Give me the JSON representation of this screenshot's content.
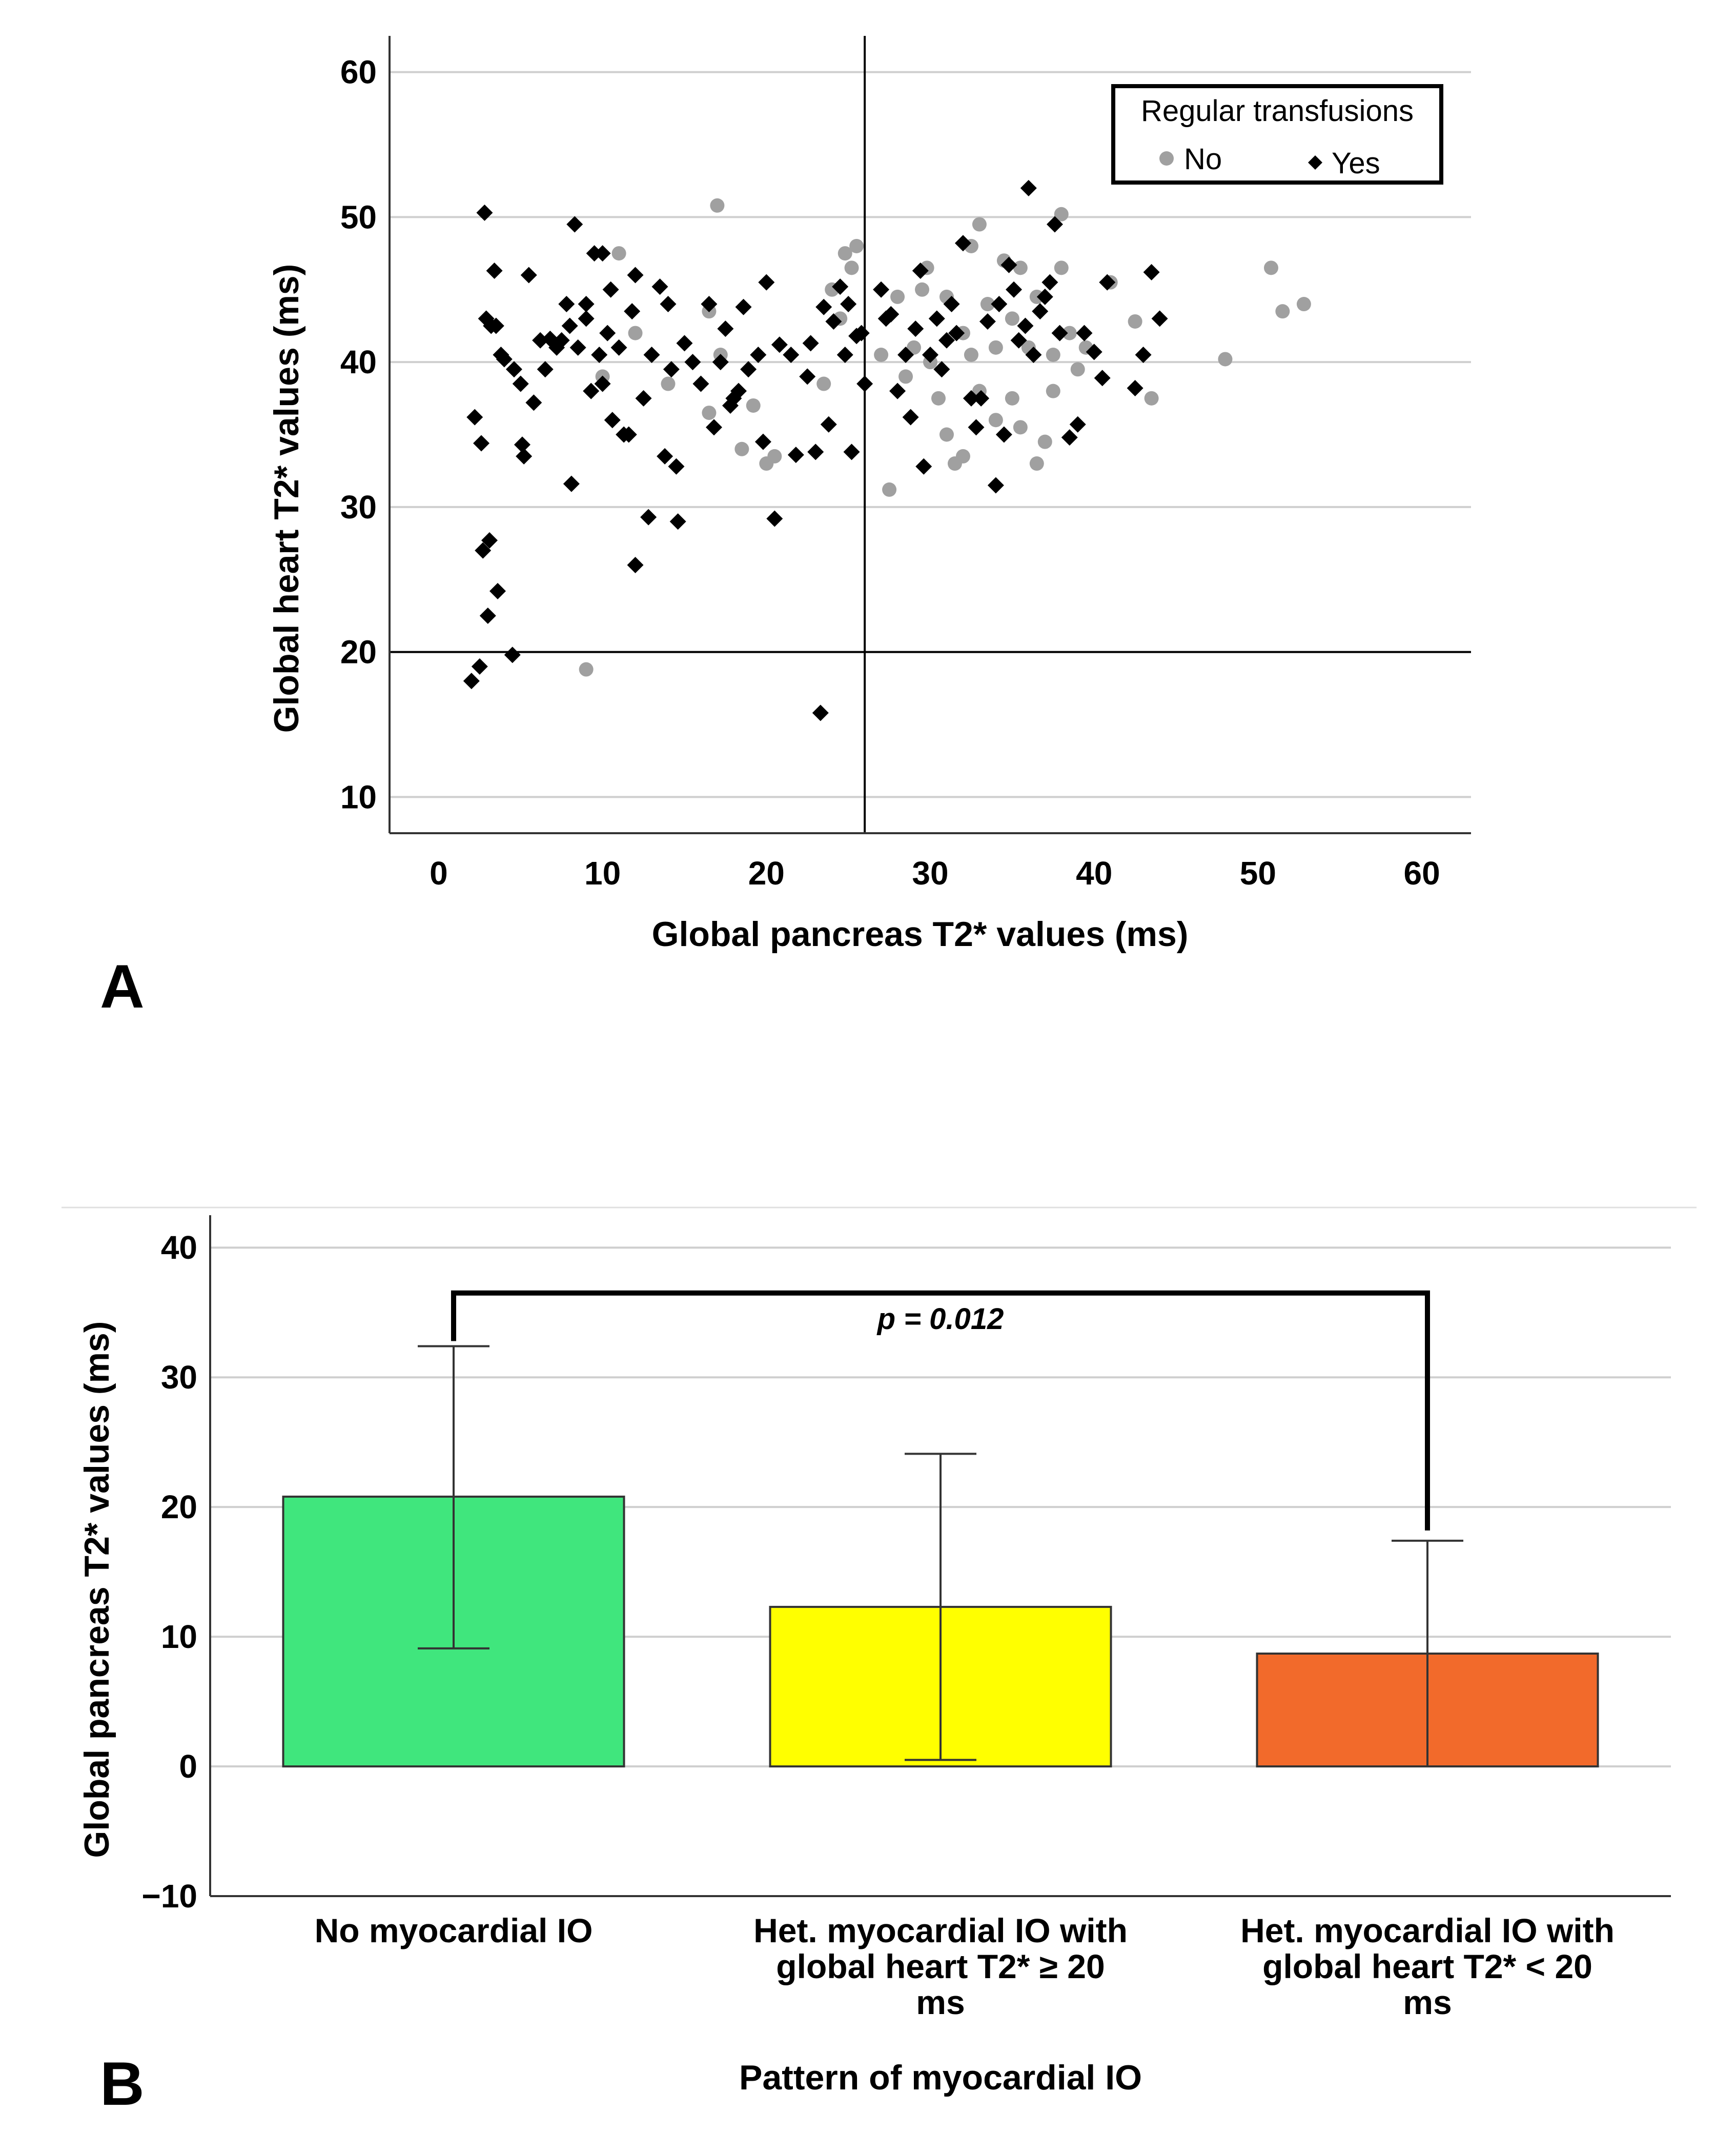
{
  "chart_data": [
    {
      "panel": "A",
      "type": "scatter",
      "xlabel": "Global pancreas T2* values (ms)",
      "ylabel": "Global heart T2* values (ms)",
      "xlim": [
        -3,
        63
      ],
      "ylim": [
        7.5,
        62.5
      ],
      "xticks": [
        0,
        10,
        20,
        30,
        40,
        50,
        60
      ],
      "yticks": [
        10,
        20,
        30,
        40,
        50,
        60
      ],
      "grid": "horizontal",
      "reference_lines": {
        "x": 26,
        "y": 20
      },
      "legend": {
        "title": "Regular transfusions",
        "position": "top-right",
        "entries": [
          {
            "label": "No",
            "marker": "circle",
            "color": "#a0a0a0"
          },
          {
            "label": "Yes",
            "marker": "diamond",
            "color": "#000000"
          }
        ]
      },
      "series": [
        {
          "name": "No",
          "marker": "circle",
          "color": "#a0a0a0",
          "points": [
            [
              9,
              18.8
            ],
            [
              10,
              39
            ],
            [
              11,
              47.5
            ],
            [
              12,
              42
            ],
            [
              14,
              38.5
            ],
            [
              16.5,
              36.5
            ],
            [
              16.5,
              43.5
            ],
            [
              17,
              50.8
            ],
            [
              17.2,
              40.5
            ],
            [
              18.5,
              34
            ],
            [
              19.2,
              37
            ],
            [
              20,
              33
            ],
            [
              20.5,
              33.5
            ],
            [
              23.5,
              38.5
            ],
            [
              24,
              45
            ],
            [
              24.5,
              43
            ],
            [
              24.8,
              47.5
            ],
            [
              25.2,
              46.5
            ],
            [
              25.5,
              48
            ],
            [
              27,
              40.5
            ],
            [
              27.5,
              31.2
            ],
            [
              28,
              44.5
            ],
            [
              28.5,
              39
            ],
            [
              29,
              41
            ],
            [
              29.5,
              45
            ],
            [
              29.8,
              46.5
            ],
            [
              30,
              40
            ],
            [
              30.5,
              37.5
            ],
            [
              31,
              35
            ],
            [
              31,
              44.5
            ],
            [
              31.5,
              33
            ],
            [
              32,
              33.5
            ],
            [
              32,
              42
            ],
            [
              32.5,
              48
            ],
            [
              32.5,
              40.5
            ],
            [
              33,
              38
            ],
            [
              33,
              49.5
            ],
            [
              33.5,
              44
            ],
            [
              34,
              41
            ],
            [
              34,
              36
            ],
            [
              34.5,
              47
            ],
            [
              35,
              43
            ],
            [
              35,
              37.5
            ],
            [
              35.5,
              35.5
            ],
            [
              35.5,
              46.5
            ],
            [
              36,
              41
            ],
            [
              36.5,
              33
            ],
            [
              36.5,
              44.5
            ],
            [
              37,
              34.5
            ],
            [
              37.5,
              40.5
            ],
            [
              37.5,
              38
            ],
            [
              38,
              50.2
            ],
            [
              38,
              46.5
            ],
            [
              38.5,
              42
            ],
            [
              39,
              39.5
            ],
            [
              39.5,
              41
            ],
            [
              41,
              45.5
            ],
            [
              42.5,
              42.8
            ],
            [
              43.5,
              37.5
            ],
            [
              48,
              40.2
            ],
            [
              50.8,
              46.5
            ],
            [
              51.5,
              43.5
            ],
            [
              52.8,
              44
            ]
          ]
        },
        {
          "name": "Yes",
          "marker": "diamond",
          "color": "#000000",
          "points": [
            [
              2,
              18
            ],
            [
              2.2,
              36.2
            ],
            [
              2.5,
              19
            ],
            [
              2.6,
              34.4
            ],
            [
              2.7,
              27
            ],
            [
              2.8,
              50.3
            ],
            [
              2.9,
              43
            ],
            [
              3,
              22.5
            ],
            [
              3.1,
              27.7
            ],
            [
              3.2,
              42.5
            ],
            [
              3.4,
              46.3
            ],
            [
              3.5,
              42.5
            ],
            [
              3.6,
              24.2
            ],
            [
              3.8,
              40.5
            ],
            [
              4,
              40.2
            ],
            [
              4.5,
              19.8
            ],
            [
              4.6,
              39.5
            ],
            [
              5,
              38.5
            ],
            [
              5.1,
              34.3
            ],
            [
              5.2,
              33.5
            ],
            [
              5.5,
              46
            ],
            [
              5.8,
              37.2
            ],
            [
              6.2,
              41.5
            ],
            [
              6.5,
              39.5
            ],
            [
              6.8,
              41.6
            ],
            [
              7.2,
              41
            ],
            [
              7.5,
              41.5
            ],
            [
              7.8,
              44
            ],
            [
              8,
              42.5
            ],
            [
              8.1,
              31.6
            ],
            [
              8.3,
              49.5
            ],
            [
              8.5,
              41
            ],
            [
              9,
              44
            ],
            [
              9,
              43
            ],
            [
              9.3,
              38
            ],
            [
              9.5,
              47.5
            ],
            [
              9.8,
              40.5
            ],
            [
              10,
              47.5
            ],
            [
              10,
              38.5
            ],
            [
              10.3,
              42
            ],
            [
              10.5,
              45
            ],
            [
              10.6,
              36
            ],
            [
              11,
              41
            ],
            [
              11.3,
              35
            ],
            [
              11.6,
              35
            ],
            [
              11.8,
              43.5
            ],
            [
              12,
              46
            ],
            [
              12,
              26
            ],
            [
              12.5,
              37.5
            ],
            [
              12.8,
              29.3
            ],
            [
              13,
              40.5
            ],
            [
              13.5,
              45.2
            ],
            [
              13.8,
              33.5
            ],
            [
              14,
              44
            ],
            [
              14.2,
              39.5
            ],
            [
              14.5,
              32.8
            ],
            [
              14.6,
              29
            ],
            [
              15,
              41.3
            ],
            [
              15.5,
              40
            ],
            [
              16,
              38.5
            ],
            [
              16.5,
              44
            ],
            [
              16.8,
              35.5
            ],
            [
              17.2,
              40
            ],
            [
              17.5,
              42.3
            ],
            [
              17.8,
              37
            ],
            [
              18,
              37.5
            ],
            [
              18.3,
              38
            ],
            [
              18.6,
              43.8
            ],
            [
              18.9,
              39.5
            ],
            [
              19.5,
              40.5
            ],
            [
              19.8,
              34.5
            ],
            [
              20,
              45.5
            ],
            [
              20.5,
              29.2
            ],
            [
              20.8,
              41.2
            ],
            [
              21.5,
              40.5
            ],
            [
              21.8,
              33.6
            ],
            [
              22.5,
              39
            ],
            [
              22.7,
              41.3
            ],
            [
              23,
              33.8
            ],
            [
              23.3,
              15.8
            ],
            [
              23.5,
              43.8
            ],
            [
              23.8,
              35.7
            ],
            [
              24.1,
              42.8
            ],
            [
              24.5,
              45.2
            ],
            [
              24.8,
              40.5
            ],
            [
              25,
              44
            ],
            [
              25.2,
              33.8
            ],
            [
              25.5,
              41.8
            ],
            [
              25.8,
              42
            ],
            [
              26,
              38.5
            ],
            [
              27,
              45
            ],
            [
              27.3,
              43
            ],
            [
              27.6,
              43.3
            ],
            [
              28,
              38
            ],
            [
              28.5,
              40.5
            ],
            [
              28.8,
              36.2
            ],
            [
              29.1,
              42.3
            ],
            [
              29.4,
              46.3
            ],
            [
              29.6,
              32.8
            ],
            [
              30,
              40.5
            ],
            [
              30.4,
              43
            ],
            [
              30.7,
              39.5
            ],
            [
              31,
              41.5
            ],
            [
              31.3,
              44
            ],
            [
              31.6,
              42
            ],
            [
              32,
              48.2
            ],
            [
              32.5,
              37.5
            ],
            [
              32.8,
              35.5
            ],
            [
              33.1,
              37.5
            ],
            [
              33.5,
              42.8
            ],
            [
              34,
              31.5
            ],
            [
              34.2,
              44
            ],
            [
              34.5,
              35
            ],
            [
              34.8,
              46.7
            ],
            [
              35.1,
              45
            ],
            [
              35.4,
              41.5
            ],
            [
              35.8,
              42.5
            ],
            [
              36,
              52
            ],
            [
              36.3,
              40.5
            ],
            [
              36.7,
              43.5
            ],
            [
              37,
              44.5
            ],
            [
              37.3,
              45.5
            ],
            [
              37.6,
              49.5
            ],
            [
              37.9,
              42
            ],
            [
              38.5,
              34.8
            ],
            [
              39,
              35.7
            ],
            [
              39.4,
              42
            ],
            [
              40,
              40.7
            ],
            [
              40.5,
              38.9
            ],
            [
              40.8,
              45.5
            ],
            [
              42.5,
              38.2
            ],
            [
              43,
              40.5
            ],
            [
              43.5,
              46.2
            ],
            [
              44,
              43
            ]
          ]
        }
      ]
    },
    {
      "panel": "B",
      "type": "bar",
      "xlabel": "Pattern of myocardial IO",
      "ylabel": "Global pancreas T2* values (ms)",
      "ylim": [
        -10,
        42.5
      ],
      "yticks": [
        40,
        30,
        20,
        10,
        0,
        -10
      ],
      "ytick_labels": [
        "40",
        "30",
        "20",
        "10",
        "0",
        "−10"
      ],
      "grid": "horizontal",
      "categories": [
        [
          "No myocardial IO"
        ],
        [
          "Het. myocardial IO with",
          "global heart T2* ≥ 20",
          "ms"
        ],
        [
          "Het. myocardial IO with",
          "global heart T2* < 20",
          "ms"
        ]
      ],
      "values": [
        20.8,
        12.3,
        8.7
      ],
      "error_low": [
        9.1,
        0.5,
        0
      ],
      "error_high": [
        32.4,
        24.1,
        17.4
      ],
      "colors": [
        "#40e67d",
        "#ffff00",
        "#f26a2b"
      ],
      "annotation": {
        "text": "p = 0.012",
        "from_category": 0,
        "to_category": 2,
        "bracket_y": 36.5
      }
    }
  ],
  "panel_labels": {
    "a": "A",
    "b": "B"
  }
}
